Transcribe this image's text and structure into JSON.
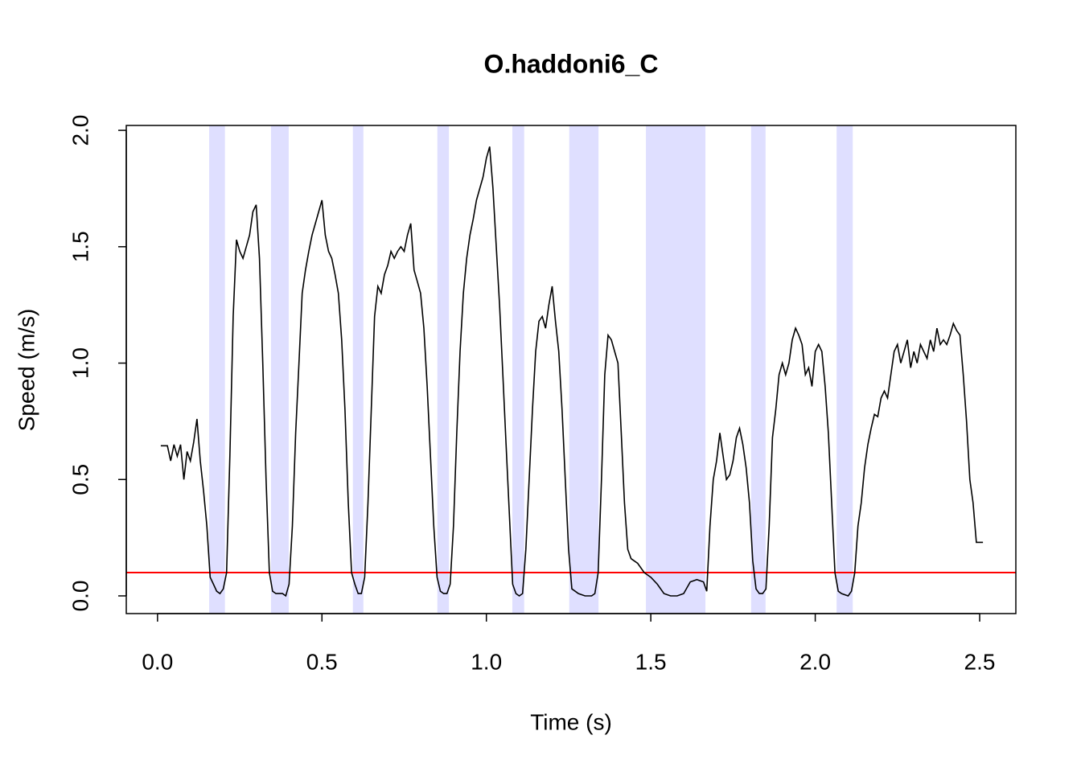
{
  "chart_data": {
    "type": "line",
    "title": "O.haddoni6_C",
    "x_label": "Time (s)",
    "y_label": "Speed (m/s)",
    "x": [
      0.01,
      0.03,
      0.04,
      0.05,
      0.06,
      0.07,
      0.08,
      0.09,
      0.1,
      0.11,
      0.12,
      0.13,
      0.14,
      0.15,
      0.16,
      0.17,
      0.18,
      0.19,
      0.2,
      0.21,
      0.22,
      0.23,
      0.24,
      0.25,
      0.26,
      0.27,
      0.28,
      0.29,
      0.3,
      0.31,
      0.32,
      0.33,
      0.34,
      0.35,
      0.36,
      0.38,
      0.39,
      0.4,
      0.41,
      0.42,
      0.43,
      0.44,
      0.45,
      0.46,
      0.47,
      0.48,
      0.49,
      0.5,
      0.51,
      0.52,
      0.53,
      0.54,
      0.55,
      0.56,
      0.57,
      0.58,
      0.59,
      0.6,
      0.61,
      0.62,
      0.63,
      0.64,
      0.65,
      0.66,
      0.67,
      0.68,
      0.69,
      0.7,
      0.71,
      0.72,
      0.73,
      0.74,
      0.75,
      0.76,
      0.77,
      0.78,
      0.79,
      0.8,
      0.81,
      0.82,
      0.83,
      0.84,
      0.85,
      0.86,
      0.87,
      0.88,
      0.89,
      0.9,
      0.91,
      0.92,
      0.93,
      0.94,
      0.95,
      0.96,
      0.97,
      0.98,
      0.99,
      1.0,
      1.01,
      1.02,
      1.03,
      1.04,
      1.05,
      1.06,
      1.07,
      1.08,
      1.09,
      1.1,
      1.11,
      1.12,
      1.13,
      1.14,
      1.15,
      1.16,
      1.17,
      1.18,
      1.19,
      1.2,
      1.21,
      1.22,
      1.23,
      1.24,
      1.25,
      1.26,
      1.27,
      1.28,
      1.3,
      1.32,
      1.33,
      1.34,
      1.35,
      1.36,
      1.37,
      1.38,
      1.39,
      1.4,
      1.41,
      1.42,
      1.43,
      1.44,
      1.46,
      1.48,
      1.5,
      1.52,
      1.54,
      1.56,
      1.58,
      1.6,
      1.62,
      1.64,
      1.66,
      1.67,
      1.68,
      1.69,
      1.7,
      1.71,
      1.72,
      1.73,
      1.74,
      1.75,
      1.76,
      1.77,
      1.78,
      1.79,
      1.8,
      1.81,
      1.82,
      1.83,
      1.84,
      1.85,
      1.86,
      1.87,
      1.88,
      1.89,
      1.9,
      1.91,
      1.92,
      1.93,
      1.94,
      1.95,
      1.96,
      1.97,
      1.98,
      1.99,
      2.0,
      2.01,
      2.02,
      2.03,
      2.04,
      2.05,
      2.06,
      2.07,
      2.08,
      2.1,
      2.11,
      2.12,
      2.13,
      2.14,
      2.15,
      2.16,
      2.17,
      2.18,
      2.19,
      2.2,
      2.21,
      2.22,
      2.23,
      2.24,
      2.25,
      2.26,
      2.27,
      2.28,
      2.29,
      2.3,
      2.31,
      2.32,
      2.33,
      2.34,
      2.35,
      2.36,
      2.37,
      2.38,
      2.39,
      2.4,
      2.41,
      2.42,
      2.43,
      2.44,
      2.45,
      2.46,
      2.47,
      2.48,
      2.49,
      2.51
    ],
    "values": [
      0.645,
      0.645,
      0.58,
      0.65,
      0.6,
      0.65,
      0.5,
      0.62,
      0.58,
      0.66,
      0.76,
      0.58,
      0.45,
      0.3,
      0.08,
      0.05,
      0.02,
      0.01,
      0.03,
      0.1,
      0.6,
      1.2,
      1.53,
      1.48,
      1.45,
      1.5,
      1.55,
      1.65,
      1.68,
      1.45,
      1.0,
      0.5,
      0.1,
      0.02,
      0.01,
      0.01,
      0.0,
      0.05,
      0.3,
      0.7,
      1.0,
      1.3,
      1.4,
      1.48,
      1.55,
      1.6,
      1.65,
      1.7,
      1.55,
      1.48,
      1.45,
      1.38,
      1.3,
      1.1,
      0.8,
      0.4,
      0.1,
      0.05,
      0.01,
      0.01,
      0.08,
      0.4,
      0.8,
      1.2,
      1.33,
      1.3,
      1.38,
      1.42,
      1.48,
      1.45,
      1.48,
      1.5,
      1.48,
      1.55,
      1.6,
      1.4,
      1.35,
      1.3,
      1.15,
      0.9,
      0.6,
      0.3,
      0.08,
      0.02,
      0.01,
      0.01,
      0.05,
      0.3,
      0.7,
      1.05,
      1.3,
      1.45,
      1.55,
      1.62,
      1.7,
      1.75,
      1.8,
      1.88,
      1.93,
      1.75,
      1.5,
      1.25,
      0.95,
      0.65,
      0.35,
      0.05,
      0.01,
      0.0,
      0.01,
      0.2,
      0.5,
      0.8,
      1.05,
      1.18,
      1.2,
      1.15,
      1.25,
      1.33,
      1.18,
      1.05,
      0.8,
      0.5,
      0.2,
      0.03,
      0.02,
      0.01,
      0.0,
      0.0,
      0.01,
      0.1,
      0.5,
      0.95,
      1.12,
      1.1,
      1.05,
      1.0,
      0.7,
      0.4,
      0.2,
      0.16,
      0.14,
      0.1,
      0.08,
      0.05,
      0.01,
      0.0,
      0.0,
      0.01,
      0.06,
      0.07,
      0.06,
      0.02,
      0.3,
      0.5,
      0.58,
      0.7,
      0.6,
      0.5,
      0.52,
      0.58,
      0.68,
      0.72,
      0.65,
      0.55,
      0.4,
      0.15,
      0.03,
      0.01,
      0.01,
      0.03,
      0.3,
      0.68,
      0.8,
      0.95,
      1.0,
      0.95,
      1.0,
      1.1,
      1.15,
      1.12,
      1.08,
      0.95,
      0.98,
      0.9,
      1.05,
      1.08,
      1.05,
      0.9,
      0.7,
      0.4,
      0.1,
      0.02,
      0.01,
      0.0,
      0.02,
      0.1,
      0.3,
      0.4,
      0.55,
      0.65,
      0.72,
      0.78,
      0.77,
      0.85,
      0.88,
      0.85,
      0.95,
      1.05,
      1.08,
      1.0,
      1.05,
      1.1,
      0.98,
      1.05,
      1.0,
      1.08,
      1.05,
      1.02,
      1.1,
      1.05,
      1.15,
      1.08,
      1.1,
      1.08,
      1.12,
      1.17,
      1.14,
      1.12,
      0.95,
      0.75,
      0.5,
      0.4,
      0.23,
      0.23
    ],
    "color": "#000000",
    "regions": [
      [
        0.157,
        0.205
      ],
      [
        0.345,
        0.399
      ],
      [
        0.594,
        0.626
      ],
      [
        0.851,
        0.886
      ],
      [
        1.079,
        1.115
      ],
      [
        1.252,
        1.341
      ],
      [
        1.485,
        1.666
      ],
      [
        1.805,
        1.849
      ],
      [
        2.065,
        2.114
      ]
    ],
    "region_color": "#dfdfff",
    "threshold": 0.1,
    "threshold_color": "#ff0000",
    "xlim": [
      -0.095,
      2.61
    ],
    "ylim": [
      -0.076,
      2.021
    ],
    "xticks": [
      {
        "value": 0,
        "label": "0.0"
      },
      0.5,
      {
        "value": 1,
        "label": "1.0"
      },
      1.5,
      {
        "value": 2,
        "label": "2.0"
      },
      2.5
    ],
    "yticks": [
      {
        "value": 0,
        "label": "0.0"
      },
      0.5,
      {
        "value": 1,
        "label": "1.0"
      },
      1.5,
      {
        "value": 2,
        "label": "2.0"
      }
    ]
  }
}
